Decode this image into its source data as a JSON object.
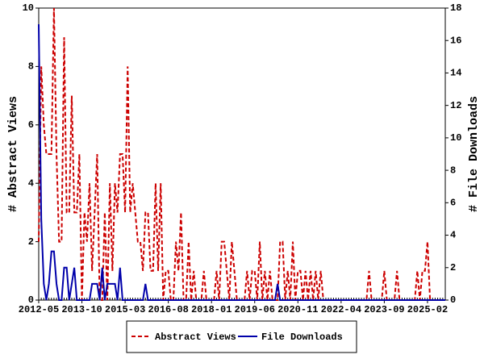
{
  "chart_data": {
    "type": "line",
    "y_label": "# Abstract Views",
    "y2_label": "# File Downloads",
    "x": [
      "2012-05",
      "2012-06",
      "2012-07",
      "2012-08",
      "2012-09",
      "2012-10",
      "2012-11",
      "2012-12",
      "2013-01",
      "2013-02",
      "2013-03",
      "2013-04",
      "2013-05",
      "2013-06",
      "2013-07",
      "2013-08",
      "2013-09",
      "2013-10",
      "2013-11",
      "2013-12",
      "2014-01",
      "2014-02",
      "2014-03",
      "2014-04",
      "2014-05",
      "2014-06",
      "2014-07",
      "2014-08",
      "2014-09",
      "2014-10",
      "2014-11",
      "2014-12",
      "2015-01",
      "2015-02",
      "2015-03",
      "2015-04",
      "2015-05",
      "2015-06",
      "2015-07",
      "2015-08",
      "2015-09",
      "2015-10",
      "2015-11",
      "2015-12",
      "2016-01",
      "2016-02",
      "2016-03",
      "2016-04",
      "2016-05",
      "2016-06",
      "2016-07",
      "2016-08",
      "2016-09",
      "2016-10",
      "2016-11",
      "2016-12",
      "2017-01",
      "2017-02",
      "2017-03",
      "2017-04",
      "2017-05",
      "2017-06",
      "2017-07",
      "2017-08",
      "2017-09",
      "2017-10",
      "2017-11",
      "2017-12",
      "2018-01",
      "2018-02",
      "2018-03",
      "2018-04",
      "2018-05",
      "2018-06",
      "2018-07",
      "2018-08",
      "2018-09",
      "2018-10",
      "2018-11",
      "2018-12",
      "2019-01",
      "2019-02",
      "2019-03",
      "2019-04",
      "2019-05",
      "2019-06",
      "2019-07",
      "2019-08",
      "2019-09",
      "2019-10",
      "2019-11",
      "2019-12",
      "2020-01",
      "2020-02",
      "2020-03",
      "2020-04",
      "2020-05",
      "2020-06",
      "2020-07",
      "2020-08",
      "2020-09",
      "2020-10",
      "2020-11",
      "2020-12",
      "2021-01",
      "2021-02",
      "2021-03",
      "2021-04",
      "2021-05",
      "2021-06",
      "2021-07",
      "2021-08",
      "2021-09",
      "2021-10",
      "2021-11",
      "2021-12",
      "2022-01",
      "2022-02",
      "2022-03",
      "2022-04",
      "2022-05",
      "2022-06",
      "2022-07",
      "2022-08",
      "2022-09",
      "2022-10",
      "2022-11",
      "2022-12",
      "2023-01",
      "2023-02",
      "2023-03",
      "2023-04",
      "2023-05",
      "2023-06",
      "2023-07",
      "2023-08",
      "2023-09",
      "2023-10",
      "2023-11",
      "2023-12",
      "2024-01",
      "2024-02",
      "2024-03",
      "2024-04",
      "2024-05",
      "2024-06",
      "2024-07",
      "2024-08",
      "2024-09",
      "2024-10",
      "2024-11",
      "2024-12",
      "2025-01",
      "2025-02",
      "2025-03",
      "2025-04",
      "2025-05",
      "2025-06",
      "2025-07",
      "2025-08",
      "2025-09"
    ],
    "xticks": [
      "2012-05",
      "2013-10",
      "2015-03",
      "2016-08",
      "2018-01",
      "2019-06",
      "2020-11",
      "2022-04",
      "2023-09",
      "2025-02"
    ],
    "ylim": [
      0,
      10
    ],
    "yticks": [
      0,
      2,
      4,
      6,
      8,
      10
    ],
    "y2lim": [
      0,
      18
    ],
    "y2ticks": [
      0,
      2,
      4,
      6,
      8,
      10,
      12,
      14,
      16,
      18
    ],
    "legend": "bottom",
    "series": [
      {
        "name": "Abstract Views",
        "color": "#cc0000",
        "dash": true,
        "values": [
          2,
          8,
          6,
          5,
          5,
          5,
          10,
          5,
          2,
          2,
          9,
          3,
          3,
          7,
          3,
          3,
          5,
          0,
          3,
          2,
          4,
          1,
          3,
          5,
          0,
          0,
          3,
          0,
          4,
          1,
          4,
          3,
          5,
          5,
          3,
          8,
          3,
          4,
          3,
          2,
          2,
          1,
          3,
          3,
          1,
          1,
          4,
          1,
          4,
          0,
          1,
          1,
          0,
          0,
          2,
          1,
          3,
          0,
          0,
          2,
          0,
          1,
          0,
          0,
          0,
          1,
          0,
          0,
          0,
          0,
          1,
          0,
          2,
          2,
          1,
          0,
          2,
          1,
          0,
          0,
          0,
          0,
          1,
          0,
          1,
          1,
          0,
          2,
          0,
          1,
          0,
          1,
          0,
          0,
          0,
          2,
          2,
          0,
          1,
          0,
          2,
          0,
          1,
          1,
          0,
          1,
          0,
          1,
          0,
          1,
          0,
          1,
          0,
          0,
          0,
          0,
          0,
          0,
          0,
          0,
          0,
          0,
          0,
          0,
          0,
          0,
          0,
          0,
          0,
          0,
          1,
          0,
          0,
          0,
          0,
          0,
          1,
          0,
          0,
          0,
          0,
          1,
          0,
          0,
          0,
          0,
          0,
          0,
          0,
          1,
          0,
          1,
          1,
          2,
          0,
          0,
          0,
          0,
          0,
          0,
          0
        ]
      },
      {
        "name": "File Downloads",
        "color": "#0000aa",
        "axis": "y2",
        "dash": false,
        "values": [
          17,
          5,
          1,
          0,
          1,
          3,
          3,
          1,
          0,
          0,
          2,
          2,
          0,
          1,
          2,
          0,
          0,
          0,
          0,
          0,
          0,
          1,
          1,
          1,
          0,
          2,
          0,
          1,
          1,
          1,
          1,
          0,
          2,
          0,
          0,
          0,
          0,
          0,
          0,
          0,
          0,
          0,
          1,
          0,
          0,
          0,
          0,
          0,
          0,
          0,
          0,
          0,
          0,
          0,
          0,
          0,
          0,
          0,
          0,
          0,
          0,
          0,
          0,
          0,
          0,
          0,
          0,
          0,
          0,
          0,
          0,
          0,
          0,
          0,
          0,
          0,
          0,
          0,
          0,
          0,
          0,
          0,
          0,
          0,
          0,
          0,
          0,
          0,
          0,
          0,
          0,
          0,
          0,
          0,
          1,
          0,
          0,
          0,
          0,
          0,
          0,
          0,
          0,
          0,
          0,
          0,
          0,
          0,
          0,
          0,
          0,
          0,
          0,
          0,
          0,
          0,
          0,
          0,
          0,
          0,
          0,
          0,
          0,
          0,
          0,
          0,
          0,
          0,
          0,
          0,
          0,
          0,
          0,
          0,
          0,
          0,
          0,
          0,
          0,
          0,
          0,
          0,
          0,
          0,
          0,
          0,
          0,
          0,
          0,
          0,
          0,
          0,
          0,
          0,
          0,
          0,
          0,
          0,
          0,
          0,
          0
        ]
      }
    ]
  }
}
